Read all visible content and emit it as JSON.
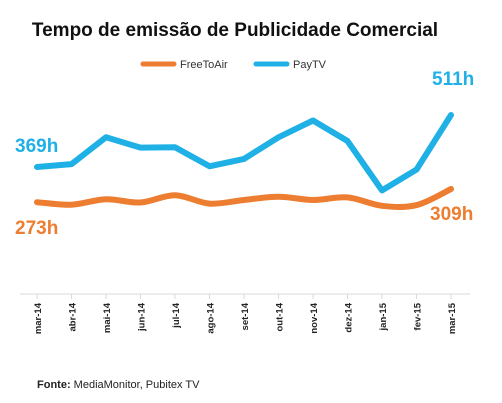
{
  "chart_data": {
    "type": "line",
    "title": "Tempo de emissão de Publicidade Comercial",
    "categories": [
      "mar-14",
      "abr-14",
      "mai-14",
      "jun-14",
      "jul-14",
      "ago-14",
      "set-14",
      "out-14",
      "nov-14",
      "dez-14",
      "jan-15",
      "fev-15",
      "mar-15"
    ],
    "series": [
      {
        "name": "FreeToAir",
        "color": "#ED7D31",
        "smooth": true,
        "values": [
          273,
          266,
          281,
          272,
          292,
          269,
          279,
          288,
          279,
          286,
          263,
          265,
          309
        ]
      },
      {
        "name": "PayTV",
        "color": "#1FB0E6",
        "smooth": false,
        "values": [
          369,
          377,
          450,
          422,
          423,
          371,
          391,
          450,
          496,
          440,
          305,
          362,
          511
        ]
      }
    ],
    "legend": "top-center",
    "grid": false,
    "annotations": [
      {
        "text": "369h",
        "series": "PayTV",
        "color": "#1FB0E6"
      },
      {
        "text": "511h",
        "series": "PayTV",
        "color": "#1FB0E6"
      },
      {
        "text": "273h",
        "series": "FreeToAir",
        "color": "#ED7D31"
      },
      {
        "text": "309h",
        "series": "FreeToAir",
        "color": "#ED7D31"
      }
    ]
  },
  "source": {
    "label": "Fonte:",
    "text": " MediaMonitor, Pubitex TV"
  }
}
